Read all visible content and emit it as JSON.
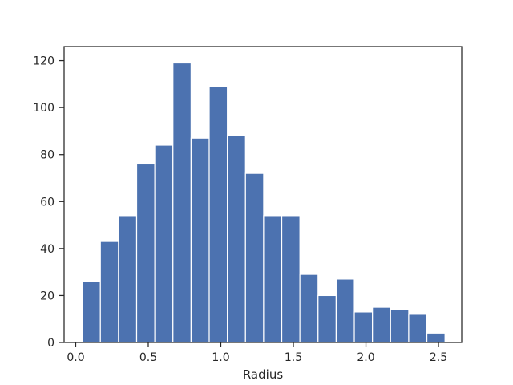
{
  "chart_data": {
    "type": "bar",
    "subtype": "histogram",
    "title": "",
    "xlabel": "Radius",
    "ylabel": "",
    "xlim": [
      -0.08,
      2.66
    ],
    "ylim": [
      0,
      126
    ],
    "xticks": [
      0.0,
      0.5,
      1.0,
      1.5,
      2.0,
      2.5
    ],
    "xtick_labels": [
      "0.0",
      "0.5",
      "1.0",
      "1.5",
      "2.0",
      "2.5"
    ],
    "yticks": [
      0,
      20,
      40,
      60,
      80,
      100,
      120
    ],
    "ytick_labels": [
      "0",
      "20",
      "40",
      "60",
      "80",
      "100",
      "120"
    ],
    "bin_edges": [
      0.045,
      0.17,
      0.295,
      0.42,
      0.545,
      0.67,
      0.795,
      0.92,
      1.045,
      1.17,
      1.295,
      1.42,
      1.545,
      1.67,
      1.795,
      1.92,
      2.045,
      2.17,
      2.295,
      2.42,
      2.545
    ],
    "counts": [
      26,
      43,
      54,
      76,
      84,
      119,
      87,
      109,
      88,
      72,
      54,
      54,
      29,
      20,
      27,
      13,
      15,
      14,
      12,
      4
    ],
    "grid": false,
    "bar_color": "#4c72b0",
    "edge_color": "#ffffff"
  }
}
